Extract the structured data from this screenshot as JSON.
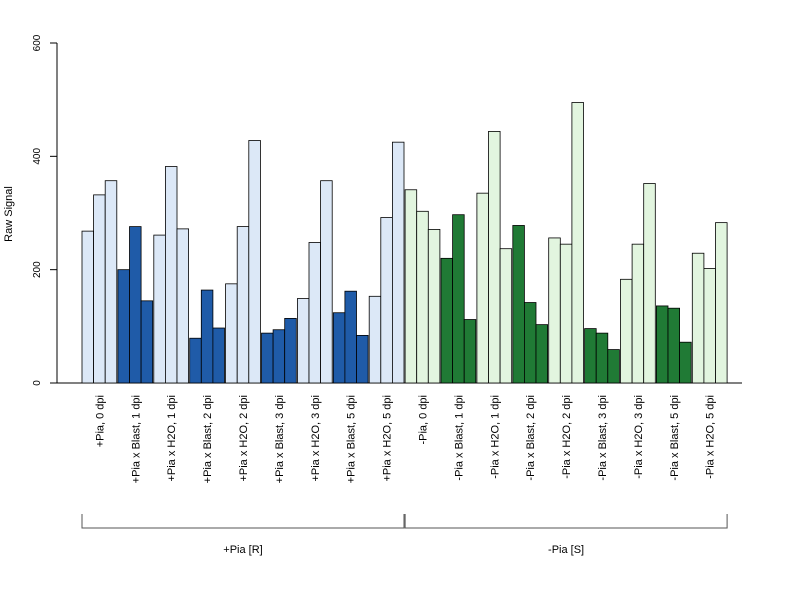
{
  "chart_data": {
    "type": "bar",
    "ylabel": "Raw Signal",
    "ylim": [
      0,
      600
    ],
    "yticks": [
      0,
      200,
      400,
      600
    ],
    "categories": [
      "+Pia, 0 dpi",
      "+Pia x Blast, 1 dpi",
      "+Pia x H2O, 1 dpi",
      "+Pia x Blast, 2 dpi",
      "+Pia x H2O, 2 dpi",
      "+Pia x Blast, 3 dpi",
      "+Pia x H2O, 3 dpi",
      "+Pia x Blast, 5 dpi",
      "+Pia x H2O, 5 dpi",
      "-Pia, 0 dpi",
      "-Pia x Blast, 1 dpi",
      "-Pia x H2O, 1 dpi",
      "-Pia x Blast, 2 dpi",
      "-Pia x H2O, 2 dpi",
      "-Pia x Blast, 3 dpi",
      "-Pia x H2O, 3 dpi",
      "-Pia x Blast, 5 dpi",
      "-Pia x H2O, 5 dpi"
    ],
    "replicates_per_category": 3,
    "values": [
      [
        268,
        332,
        357
      ],
      [
        200,
        276,
        145
      ],
      [
        261,
        382,
        272
      ],
      [
        79,
        164,
        97
      ],
      [
        175,
        276,
        428
      ],
      [
        88,
        94,
        114
      ],
      [
        149,
        248,
        357
      ],
      [
        124,
        162,
        84
      ],
      [
        153,
        292,
        425
      ],
      [
        341,
        303,
        271
      ],
      [
        220,
        297,
        112
      ],
      [
        335,
        444,
        237
      ],
      [
        278,
        142,
        103
      ],
      [
        256,
        245,
        495
      ],
      [
        96,
        88,
        59
      ],
      [
        183,
        245,
        352
      ],
      [
        136,
        132,
        72
      ],
      [
        229,
        202,
        283
      ]
    ],
    "bar_colors": [
      "#dce8f7",
      "#1f5ba8",
      "#dce8f7",
      "#1f5ba8",
      "#dce8f7",
      "#1f5ba8",
      "#dce8f7",
      "#1f5ba8",
      "#dce8f7",
      "#e2f5df",
      "#207a35",
      "#e2f5df",
      "#207a35",
      "#e2f5df",
      "#207a35",
      "#e2f5df",
      "#207a35",
      "#e2f5df"
    ],
    "groups": [
      {
        "label": "+Pia [R]",
        "from": 0,
        "to": 8
      },
      {
        "label": "-Pia [S]",
        "from": 9,
        "to": 17
      }
    ],
    "grid": false,
    "legend": "none"
  }
}
